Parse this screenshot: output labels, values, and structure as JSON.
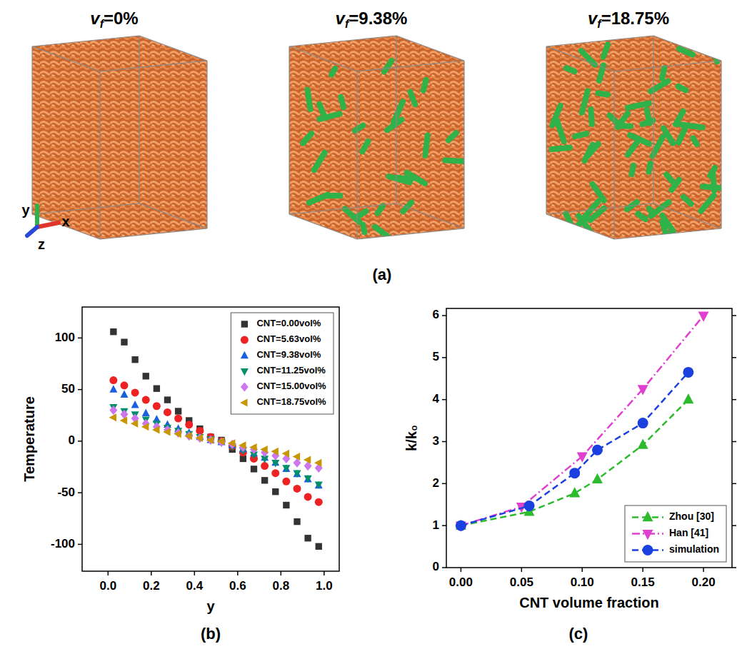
{
  "figure": {
    "panel_labels": [
      "(a)",
      "(b)",
      "(c)"
    ],
    "panel_a": {
      "titles": [
        {
          "symbol": "v",
          "subscript": "f",
          "text": "=0%"
        },
        {
          "symbol": "v",
          "subscript": "f",
          "text": "=9.38%"
        },
        {
          "symbol": "v",
          "subscript": "f",
          "text": "=18.75%"
        }
      ],
      "axes": [
        "y",
        "x",
        "z"
      ]
    }
  },
  "chart_data": [
    {
      "type": "scatter",
      "xlabel": "y",
      "ylabel": "Temperature",
      "x": [
        0.025,
        0.075,
        0.125,
        0.175,
        0.225,
        0.275,
        0.325,
        0.375,
        0.425,
        0.475,
        0.525,
        0.575,
        0.625,
        0.675,
        0.725,
        0.775,
        0.825,
        0.875,
        0.925,
        0.975
      ],
      "xlim": [
        -0.12,
        1.07
      ],
      "xticks": [
        {
          "value": 0,
          "label": "0.0"
        },
        0.2,
        0.4,
        0.6,
        0.8,
        {
          "value": 1,
          "label": "1.0"
        }
      ],
      "ylim": [
        -126,
        130
      ],
      "yticks": [
        -100,
        -50,
        0,
        50,
        100
      ],
      "legend": "upper right",
      "series": [
        {
          "name": "CNT=0.00vol%",
          "color": "#333333",
          "marker": "square",
          "values": [
            106,
            96,
            79,
            63,
            51,
            40,
            29,
            20,
            12,
            4,
            1,
            -8,
            -17,
            -27,
            -38,
            -49,
            -62,
            -78,
            -94,
            -102
          ]
        },
        {
          "name": "CNT=5.63vol%",
          "color": "#ee2222",
          "marker": "circle",
          "values": [
            59,
            54,
            47,
            40,
            34,
            28,
            22,
            16,
            10,
            4,
            0,
            -5,
            -11,
            -17,
            -24,
            -31,
            -39,
            -46,
            -54,
            -59
          ]
        },
        {
          "name": "CNT=9.38vol%",
          "color": "#1a5fe0",
          "marker": "triangle-up",
          "values": [
            50,
            45,
            35,
            27,
            21,
            16,
            12,
            8,
            4,
            1,
            -1,
            -4,
            -8,
            -12,
            -16,
            -21,
            -27,
            -32,
            -37,
            -43
          ]
        },
        {
          "name": "CNT=11.25vol%",
          "color": "#008f6b",
          "marker": "triangle-down",
          "values": [
            33,
            29,
            26,
            21,
            17,
            13,
            10,
            7,
            4,
            2,
            -1,
            -5,
            -9,
            -13,
            -17,
            -21,
            -26,
            -31,
            -36,
            -42
          ]
        },
        {
          "name": "CNT=15.00vol%",
          "color": "#cc77ee",
          "marker": "diamond",
          "values": [
            30,
            26,
            22,
            17,
            14,
            11,
            8,
            5,
            3,
            1,
            -1,
            -3,
            -6,
            -8,
            -11,
            -14,
            -17,
            -21,
            -24,
            -26
          ]
        },
        {
          "name": "CNT=18.75vol%",
          "color": "#c89600",
          "marker": "triangle-left",
          "values": [
            23,
            20,
            17,
            14,
            11,
            9,
            7,
            5,
            3,
            1,
            0,
            -2,
            -4,
            -6,
            -8,
            -10,
            -12,
            -15,
            -18,
            -21
          ]
        }
      ]
    },
    {
      "type": "line",
      "xlabel": "CNT volume fraction",
      "ylabel": "k/k₀",
      "xlim": [
        -0.012,
        0.2235
      ],
      "xticks": [
        {
          "value": 0,
          "label": "0.00"
        },
        0.05,
        {
          "value": 0.1,
          "label": "0.10"
        },
        0.15,
        {
          "value": 0.2,
          "label": "0.20"
        }
      ],
      "ylim": [
        0,
        6.17
      ],
      "yticks": [
        0,
        1,
        2,
        3,
        4,
        5,
        6
      ],
      "legend": "lower right",
      "series": [
        {
          "name": "Zhou [30]",
          "color": "#2dbb2d",
          "marker": "triangle-up",
          "line_style": "dashed",
          "x": [
            0,
            0.0563,
            0.0938,
            0.1125,
            0.15,
            0.1875
          ],
          "values": [
            1,
            1.33,
            1.77,
            2.1,
            2.92,
            4.0
          ]
        },
        {
          "name": "Han [41]",
          "color": "#e040d0",
          "marker": "triangle-down",
          "line_style": "dash-dot",
          "x": [
            0,
            0.05,
            0.1,
            0.15,
            0.2
          ],
          "values": [
            1,
            1.45,
            2.65,
            4.25,
            6.0
          ]
        },
        {
          "name": "simulation",
          "color": "#1a40e0",
          "marker": "circle",
          "line_style": "dashed",
          "x": [
            0,
            0.0563,
            0.0938,
            0.1125,
            0.15,
            0.1875
          ],
          "values": [
            1,
            1.47,
            2.25,
            2.8,
            3.44,
            4.65
          ]
        }
      ]
    }
  ]
}
